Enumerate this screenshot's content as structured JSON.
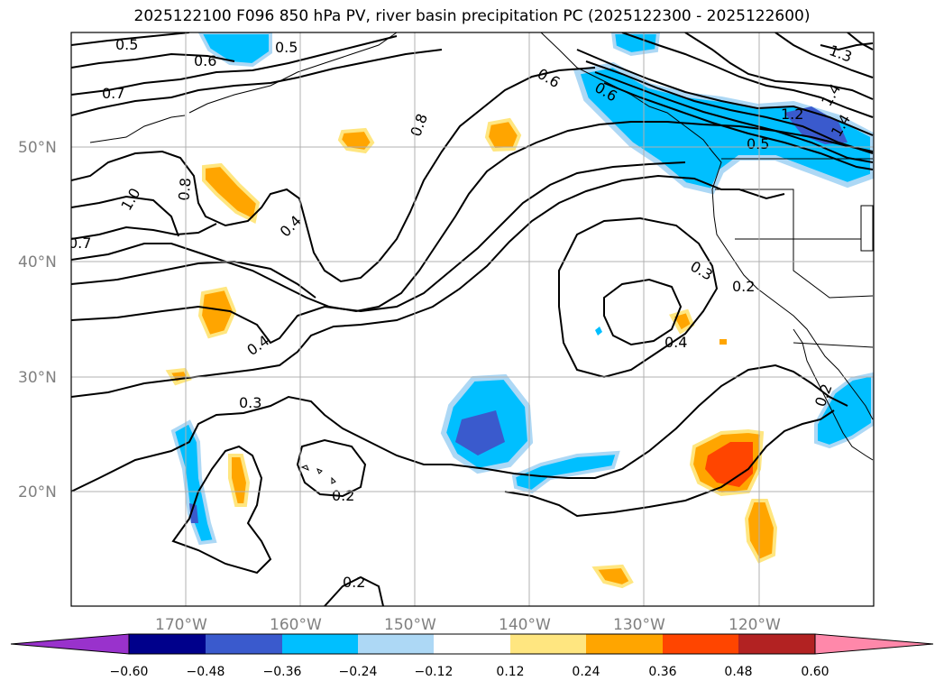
{
  "title": "2025122100 F096 850 hPa PV, river basin precipitation PC (2025122300 - 2025122600)",
  "map": {
    "lon_range": [
      -180,
      -110
    ],
    "lat_range": [
      10,
      60
    ],
    "grid": true,
    "lat_labels": [
      "20°N",
      "30°N",
      "40°N",
      "50°N"
    ],
    "lon_labels": [
      "170°W",
      "160°W",
      "150°W",
      "140°W",
      "130°W",
      "120°W"
    ]
  },
  "colorbar": {
    "levels": [
      "−0.60",
      "−0.48",
      "−0.36",
      "−0.24",
      "−0.12",
      "0.12",
      "0.24",
      "0.36",
      "0.48",
      "0.60"
    ],
    "colors": [
      "#9932cc",
      "#00008b",
      "#3a5acd",
      "#00bfff",
      "#add8f5",
      "#ffffff",
      "#ffe680",
      "#ffa500",
      "#ff4500",
      "#b22222",
      "#ff88aa"
    ],
    "extend": "both"
  },
  "contour_labels": [
    "0.5",
    "0.5",
    "0.6",
    "0.7",
    "1.0",
    "0.8",
    "0.7",
    "0.4",
    "0.8",
    "0.6",
    "0.6",
    "1.2",
    "1.4",
    "1.4",
    "1.3",
    "0.5",
    "0.4",
    "0.3",
    "0.3",
    "0.2",
    "0.4",
    "0.2",
    "0.2",
    "0.2"
  ]
}
